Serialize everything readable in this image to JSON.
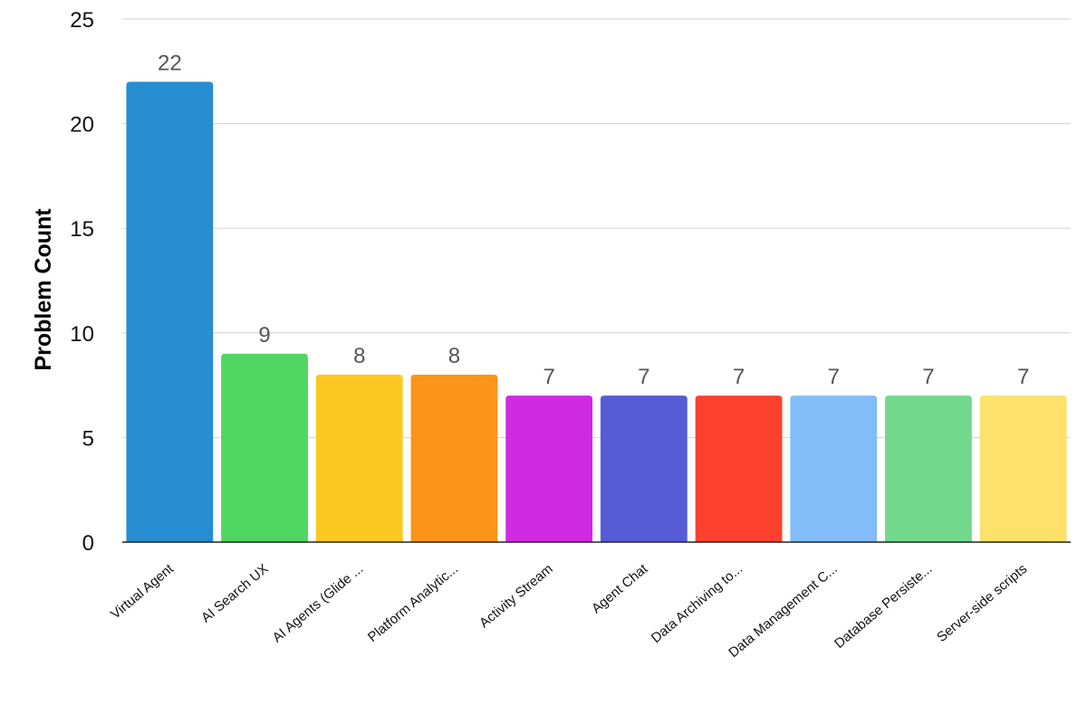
{
  "chart_data": {
    "type": "bar",
    "ylabel": "Problem Count",
    "xlabel": "",
    "ylim": [
      0,
      25
    ],
    "yticks": [
      0,
      5,
      10,
      15,
      20,
      25
    ],
    "grid": true,
    "categories": [
      "Virtual Agent",
      "AI Search UX",
      "AI Agents (Glide ...",
      "Platform Analytic...",
      "Activity Stream",
      "Agent Chat",
      "Data Archiving to...",
      "Data Management C...",
      "Database Persiste...",
      "Server-side scripts"
    ],
    "values": [
      22,
      9,
      8,
      8,
      7,
      7,
      7,
      7,
      7,
      7
    ],
    "colors": [
      "#268ed1",
      "#4fd761",
      "#fec822",
      "#fd941a",
      "#d12ae3",
      "#565bd6",
      "#fe402f",
      "#82bdf9",
      "#72d98c",
      "#fde16a"
    ]
  }
}
